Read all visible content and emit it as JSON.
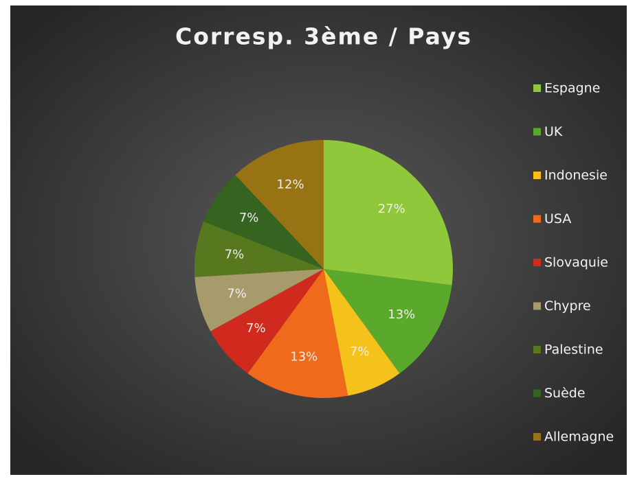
{
  "chart_data": {
    "type": "pie",
    "title": "Corresp. 3ème / Pays",
    "categories": [
      "Espagne",
      "UK",
      "Indonesie",
      "USA",
      "Slovaquie",
      "Chypre",
      "Palestine",
      "Suède",
      "Allemagne"
    ],
    "values": [
      27,
      13,
      7,
      13,
      7,
      7,
      7,
      7,
      12
    ],
    "value_labels": [
      "27%",
      "13%",
      "7%",
      "13%",
      "7%",
      "7%",
      "7%",
      "7%",
      "12%"
    ],
    "colors": [
      "#8fc83a",
      "#5aa82c",
      "#f5c21b",
      "#f06a1c",
      "#cf2a1d",
      "#a79b6c",
      "#58781f",
      "#356420",
      "#977313"
    ],
    "legend": "right"
  }
}
